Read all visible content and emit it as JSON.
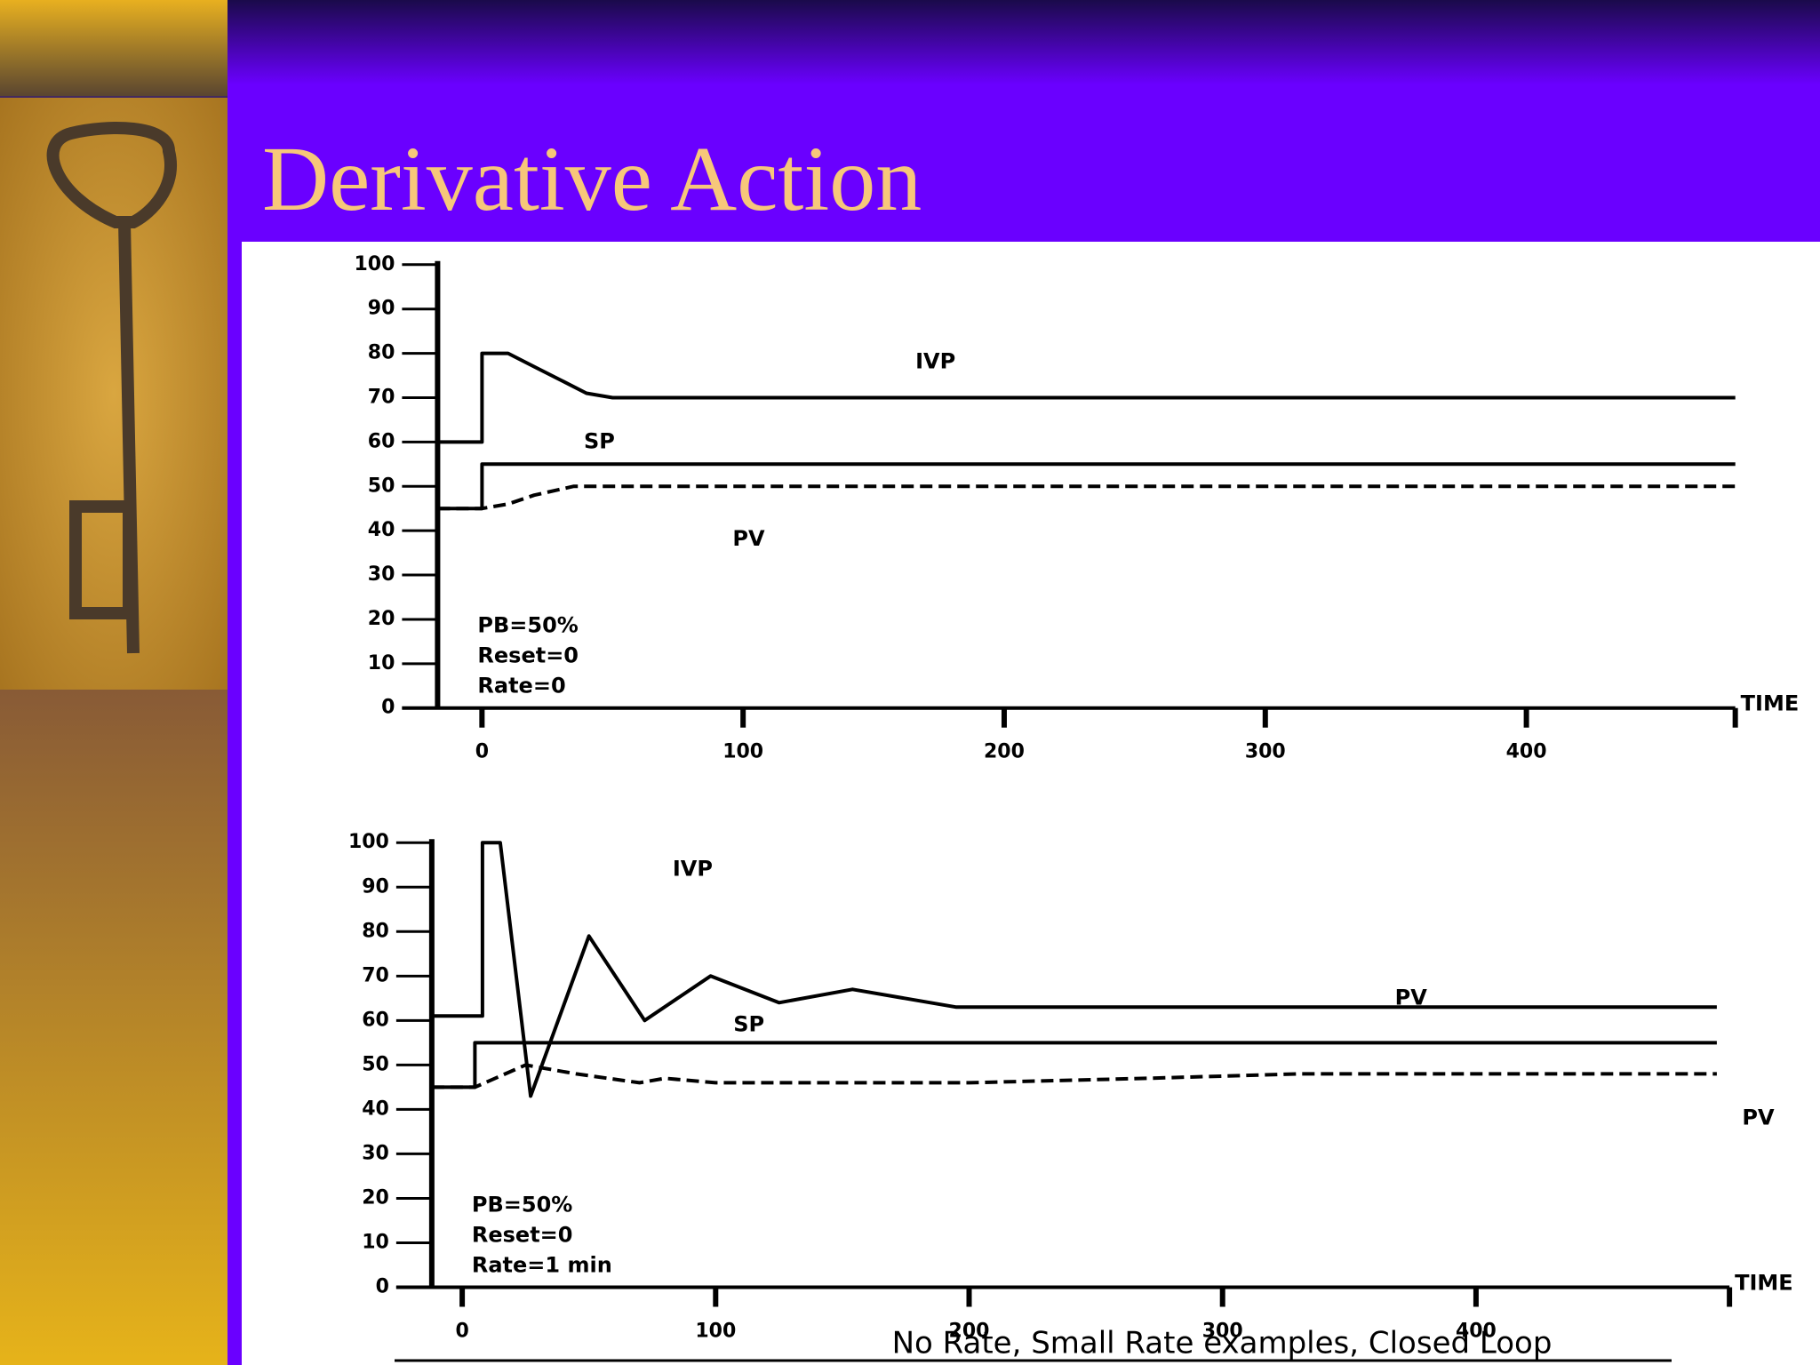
{
  "title": "Derivative Action",
  "caption": "No Rate, Small Rate examples, Closed Loop",
  "chart_data": [
    {
      "type": "line",
      "xlabel": "TIME",
      "xlim": [
        -17,
        480
      ],
      "ylim": [
        0,
        100
      ],
      "xticks": [
        0,
        100,
        200,
        300,
        400
      ],
      "yticks": [
        0,
        10,
        20,
        30,
        40,
        50,
        60,
        70,
        80,
        90,
        100
      ],
      "series": [
        {
          "name": "IVP",
          "color": "#000000",
          "dashed": false,
          "x": [
            -17,
            0,
            0,
            10,
            20,
            30,
            40,
            50,
            480
          ],
          "values": [
            60,
            60,
            80,
            80,
            77,
            74,
            71,
            70,
            70
          ]
        },
        {
          "name": "SP",
          "color": "#000000",
          "dashed": false,
          "x": [
            -17,
            0,
            0,
            480
          ],
          "values": [
            45,
            45,
            55,
            55
          ]
        },
        {
          "name": "PV",
          "color": "#000000",
          "dashed": true,
          "x": [
            -17,
            0,
            10,
            20,
            35,
            480
          ],
          "values": [
            45,
            45,
            46,
            48,
            50,
            50
          ]
        }
      ],
      "annotations": [
        {
          "text": "IVP",
          "x": 166,
          "y": 78
        },
        {
          "text": "SP",
          "x": 39,
          "y": 60
        },
        {
          "text": "PV",
          "x": 96,
          "y": 38
        }
      ],
      "notes": [
        "PB=50%",
        "Reset=0",
        "Rate=0"
      ]
    },
    {
      "type": "line",
      "xlabel": "TIME",
      "xlim": [
        -12,
        500
      ],
      "ylim": [
        0,
        100
      ],
      "xticks": [
        0,
        100,
        200,
        300,
        400
      ],
      "yticks": [
        0,
        10,
        20,
        30,
        40,
        50,
        60,
        70,
        80,
        90,
        100
      ],
      "series": [
        {
          "name": "IVP",
          "color": "#000000",
          "dashed": false,
          "x": [
            -12,
            8,
            8,
            15,
            27,
            50,
            72,
            98,
            125,
            154,
            195,
            495
          ],
          "values": [
            61,
            61,
            100,
            100,
            43,
            79,
            60,
            70,
            64,
            67,
            63,
            63
          ]
        },
        {
          "name": "SP",
          "color": "#000000",
          "dashed": false,
          "x": [
            -12,
            5,
            5,
            495
          ],
          "values": [
            45,
            45,
            55,
            55
          ]
        },
        {
          "name": "PV",
          "color": "#000000",
          "dashed": true,
          "x": [
            -12,
            5,
            25,
            45,
            70,
            80,
            100,
            200,
            270,
            330,
            495
          ],
          "values": [
            45,
            45,
            50,
            48,
            46,
            47,
            46,
            46,
            47,
            48,
            48
          ]
        }
      ],
      "annotations": [
        {
          "text": "IVP",
          "x": 83,
          "y": 94
        },
        {
          "text": "SP",
          "x": 107,
          "y": 59
        },
        {
          "text": "PV",
          "x": 368,
          "y": 65
        },
        {
          "text": "PV",
          "x": 505,
          "y": 38
        }
      ],
      "notes": [
        "PB=50%",
        "Reset=0",
        "Rate=1 min"
      ]
    }
  ]
}
